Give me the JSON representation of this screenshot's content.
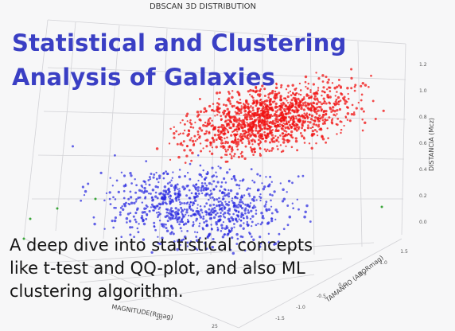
{
  "plot": {
    "title": "DBSCAN 3D DISTRIBUTION",
    "z_axis_label": "DISTANCIA (Mcz)",
    "y_axis_label": "TAMANHO (ABORmag)",
    "x_axis_label": "MAGNITUDE(Rmag)",
    "z_ticks": [
      "1.2",
      "1.0",
      "0.8",
      "0.6",
      "0.4",
      "0.2",
      "0.0"
    ],
    "y_ticks": [
      "1.5",
      "1.0",
      "0.5",
      "0.0",
      "-0.5",
      "-1.0",
      "-1.5"
    ],
    "x_ticks": [
      "20",
      "25"
    ],
    "cluster_colors": {
      "cluster_1": "#f01010",
      "cluster_2": "#2424e0",
      "noise": "#3aa63a"
    }
  },
  "article": {
    "title_lines": [
      "Statistical and Clustering",
      "Analysis of Galaxies"
    ],
    "description_lines": [
      "A deep dive into statistical concepts",
      "like t-test and QQ-plot, and also ML",
      "clustering algorithm."
    ]
  }
}
